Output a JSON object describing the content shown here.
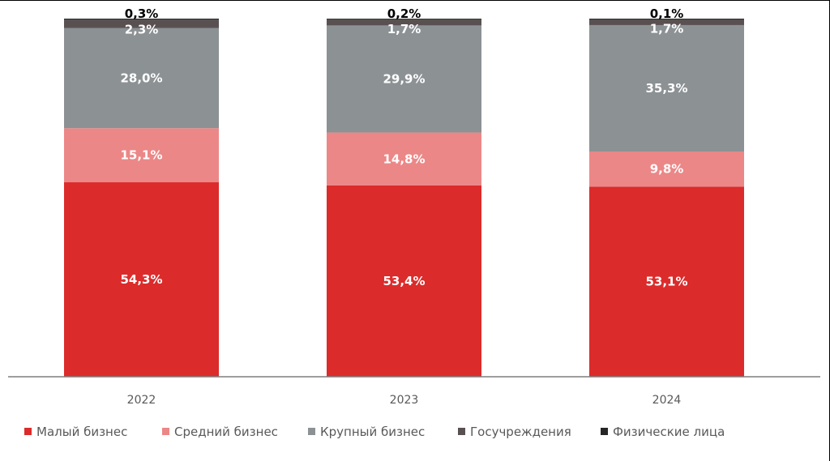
{
  "chart_data": {
    "type": "bar",
    "stacked": true,
    "categories": [
      "2022",
      "2023",
      "2024"
    ],
    "series": [
      {
        "name": "Малый бизнес",
        "color": "#dc2b2b",
        "values": [
          54.3,
          53.4,
          53.1
        ],
        "labels": [
          "54,3%",
          "53,4%",
          "53,1%"
        ]
      },
      {
        "name": "Средний бизнес",
        "color": "#ec8787",
        "values": [
          15.1,
          14.8,
          9.8
        ],
        "labels": [
          "15,1%",
          "14,8%",
          "9,8%"
        ]
      },
      {
        "name": "Крупный бизнес",
        "color": "#8c9194",
        "values": [
          28.0,
          29.9,
          35.3
        ],
        "labels": [
          "28,0%",
          "29,9%",
          "35,3%"
        ]
      },
      {
        "name": "Госучреждения",
        "color": "#595151",
        "values": [
          2.3,
          1.7,
          1.7
        ],
        "labels": [
          "2,3%",
          "1,7%",
          "1,7%"
        ]
      },
      {
        "name": "Физические лица",
        "color": "#262626",
        "values": [
          0.3,
          0.2,
          0.1
        ],
        "labels": [
          "0,3%",
          "0,2%",
          "0,1%"
        ]
      }
    ],
    "ylim": [
      0,
      100
    ],
    "grid": false,
    "legend": "bottom"
  }
}
